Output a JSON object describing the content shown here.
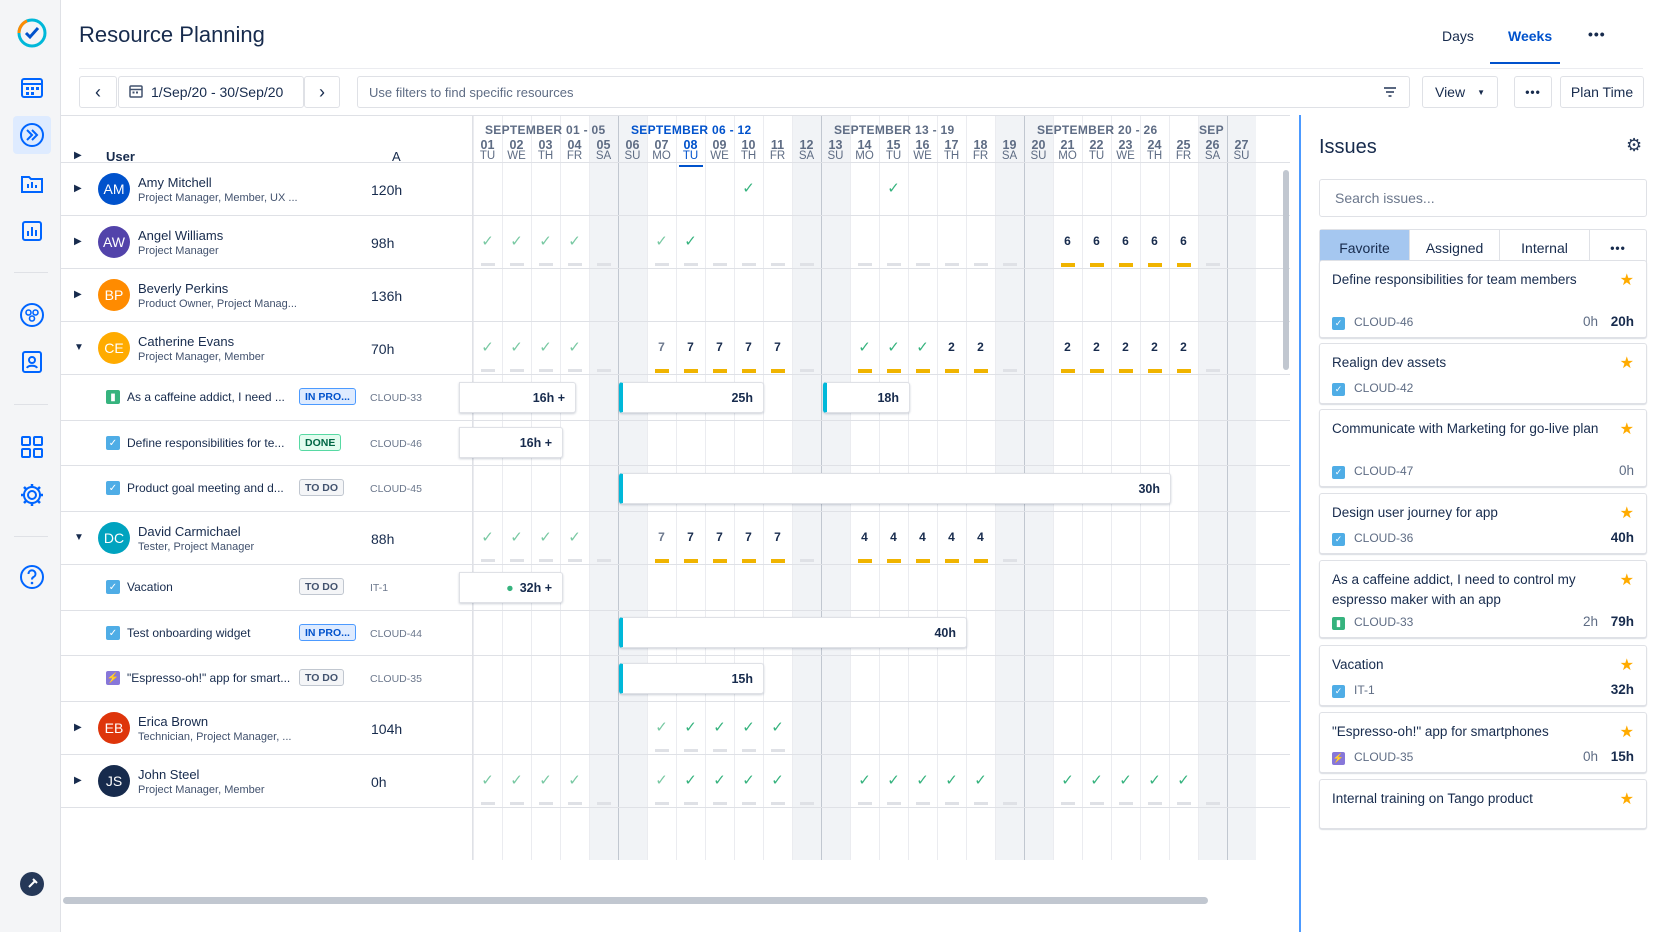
{
  "app": {
    "title": "Resource Planning",
    "tabs": [
      "Days",
      "Weeks"
    ],
    "active_tab": "Weeks",
    "more": "•••"
  },
  "toolbar": {
    "prev": "‹",
    "next": "›",
    "date_range": "1/Sep/20 - 30/Sep/20",
    "filter_placeholder": "Use filters to find specific resources",
    "view_label": "View",
    "more": "•••",
    "plan_time": "Plan Time"
  },
  "grid": {
    "user_header": "User",
    "hours_header": "A",
    "weeks": [
      {
        "label": "SEPTEMBER 01 - 05",
        "current": false
      },
      {
        "label": "SEPTEMBER 06 - 12",
        "current": true
      },
      {
        "label": "SEPTEMBER 13 - 19",
        "current": false
      },
      {
        "label": "SEPTEMBER 20 - 26",
        "current": false
      },
      {
        "label": "SEP",
        "current": false
      }
    ],
    "days": [
      {
        "n": "01",
        "d": "TU"
      },
      {
        "n": "02",
        "d": "WE"
      },
      {
        "n": "03",
        "d": "TH"
      },
      {
        "n": "04",
        "d": "FR"
      },
      {
        "n": "05",
        "d": "SA"
      },
      {
        "n": "06",
        "d": "SU"
      },
      {
        "n": "07",
        "d": "MO"
      },
      {
        "n": "08",
        "d": "TU"
      },
      {
        "n": "09",
        "d": "WE"
      },
      {
        "n": "10",
        "d": "TH"
      },
      {
        "n": "11",
        "d": "FR"
      },
      {
        "n": "12",
        "d": "SA"
      },
      {
        "n": "13",
        "d": "SU"
      },
      {
        "n": "14",
        "d": "MO"
      },
      {
        "n": "15",
        "d": "TU"
      },
      {
        "n": "16",
        "d": "WE"
      },
      {
        "n": "17",
        "d": "TH"
      },
      {
        "n": "18",
        "d": "FR"
      },
      {
        "n": "19",
        "d": "SA"
      },
      {
        "n": "20",
        "d": "SU"
      },
      {
        "n": "21",
        "d": "MO"
      },
      {
        "n": "22",
        "d": "TU"
      },
      {
        "n": "23",
        "d": "WE"
      },
      {
        "n": "24",
        "d": "TH"
      },
      {
        "n": "25",
        "d": "FR"
      },
      {
        "n": "26",
        "d": "SA"
      },
      {
        "n": "27",
        "d": "SU"
      }
    ],
    "today_index": 7,
    "users": [
      {
        "initials": "AM",
        "name": "Amy Mitchell",
        "role": "Project Manager, Member, UX ...",
        "hours": "120h",
        "color": "#0052cc",
        "expanded": false
      },
      {
        "initials": "AW",
        "name": "Angel Williams",
        "role": "Project Manager",
        "hours": "98h",
        "color": "#5243aa",
        "expanded": false
      },
      {
        "initials": "BP",
        "name": "Beverly Perkins",
        "role": "Product Owner, Project Manag...",
        "hours": "136h",
        "color": "#ff8b00",
        "expanded": false
      },
      {
        "initials": "CE",
        "name": "Catherine Evans",
        "role": "Project Manager, Member",
        "hours": "70h",
        "color": "#ffab00",
        "expanded": true
      },
      {
        "initials": "DC",
        "name": "David Carmichael",
        "role": "Tester, Project Manager",
        "hours": "88h",
        "color": "#00a3bf",
        "expanded": true
      },
      {
        "initials": "EB",
        "name": "Erica Brown",
        "role": "Technician, Project Manager, ...",
        "hours": "104h",
        "color": "#de350b",
        "expanded": false
      },
      {
        "initials": "JS",
        "name": "John Steel",
        "role": "Project Manager, Member",
        "hours": "0h",
        "color": "#172b4d",
        "expanded": false
      }
    ],
    "issues": [
      {
        "type": "story",
        "name": "As a caffeine addict, I need ...",
        "status": "IN PRO...",
        "key": "CLOUD-33"
      },
      {
        "type": "task",
        "name": "Define responsibilities for te...",
        "status": "DONE",
        "key": "CLOUD-46"
      },
      {
        "type": "task",
        "name": "Product goal meeting and d...",
        "status": "TO DO",
        "key": "CLOUD-45"
      },
      {
        "type": "task",
        "name": "Vacation",
        "status": "TO DO",
        "key": "IT-1"
      },
      {
        "type": "task",
        "name": "Test onboarding widget",
        "status": "IN PRO...",
        "key": "CLOUD-44"
      },
      {
        "type": "epic",
        "name": "\"Espresso-oh!\" app for smart...",
        "status": "TO DO",
        "key": "CLOUD-35"
      }
    ],
    "bars": [
      {
        "label": "16h +"
      },
      {
        "label": "25h"
      },
      {
        "label": "18h"
      },
      {
        "label": "16h +"
      },
      {
        "label": "30h"
      },
      {
        "label": "32h +"
      },
      {
        "label": "40h"
      },
      {
        "label": "15h"
      }
    ],
    "numbers": {
      "angel": [
        "6",
        "6",
        "6",
        "6",
        "6"
      ],
      "catherine_w2": [
        "7",
        "7",
        "7",
        "7",
        "7"
      ],
      "catherine_w3": [
        "2",
        "2"
      ],
      "catherine_w4": [
        "2",
        "2",
        "2",
        "2",
        "2"
      ],
      "david_w2": [
        "7",
        "7",
        "7",
        "7",
        "7"
      ],
      "david_w3": [
        "4",
        "4",
        "4",
        "4",
        "4"
      ]
    }
  },
  "issues_panel": {
    "title": "Issues",
    "search_placeholder": "Search issues...",
    "tabs": [
      "Favorite",
      "Assigned",
      "Internal"
    ],
    "active_tab": "Favorite",
    "more": "•••",
    "cards": [
      {
        "title": "Define responsibilities for team members",
        "key": "CLOUD-46",
        "type": "task",
        "spent": "0h",
        "estimate": "20h"
      },
      {
        "title": "Realign dev assets",
        "key": "CLOUD-42",
        "type": "task",
        "spent": "",
        "estimate": ""
      },
      {
        "title": "Communicate with Marketing for go-live plan",
        "key": "CLOUD-47",
        "type": "task",
        "spent": "0h",
        "estimate": ""
      },
      {
        "title": "Design user journey for app",
        "key": "CLOUD-36",
        "type": "task",
        "spent": "",
        "estimate": "40h"
      },
      {
        "title": "As a caffeine addict, I need to control my espresso maker with an app",
        "key": "CLOUD-33",
        "type": "story",
        "spent": "2h",
        "estimate": "79h"
      },
      {
        "title": "Vacation",
        "key": "IT-1",
        "type": "task",
        "spent": "",
        "estimate": "32h"
      },
      {
        "title": "\"Espresso-oh!\" app for smartphones",
        "key": "CLOUD-35",
        "type": "epic",
        "spent": "0h",
        "estimate": "15h"
      },
      {
        "title": "Internal training on Tango product",
        "key": "",
        "type": "task",
        "spent": "",
        "estimate": ""
      }
    ]
  },
  "colors": {
    "accent": "#0052cc",
    "check": "#36b37e",
    "capacity_bar": "#f0b400",
    "progress_edge": "#00b8d9",
    "panel_border": "#4c9aff",
    "star": "#ffab00"
  },
  "icons": [
    "tango-check-logo-icon",
    "calendar-icon",
    "double-chevron-icon",
    "folder-chart-icon",
    "bar-chart-icon",
    "team-icon",
    "contact-card-icon",
    "apps-grid-icon",
    "gear-icon",
    "help-icon",
    "pin-icon",
    "filter-icon",
    "chevron-down-icon",
    "star-icon",
    "checkbox-icon",
    "bookmark-icon",
    "lightning-icon"
  ]
}
